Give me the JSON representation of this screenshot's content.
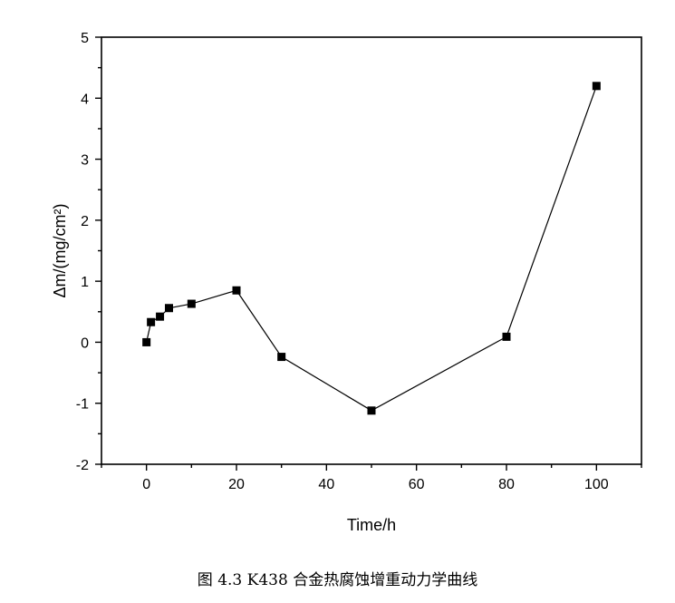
{
  "chart_data": {
    "type": "line",
    "title": "",
    "xlabel": "Time/h",
    "ylabel": "Δm/(mg/cm²)",
    "xlim": [
      -10,
      110
    ],
    "ylim": [
      -2,
      5
    ],
    "x_ticks": [
      0,
      20,
      40,
      60,
      80,
      100
    ],
    "y_ticks": [
      -2,
      -1,
      0,
      1,
      2,
      3,
      4,
      5
    ],
    "grid": false,
    "series": [
      {
        "marker": "square",
        "x": [
          0,
          1,
          3,
          5,
          10,
          20,
          30,
          50,
          80,
          100
        ],
        "y": [
          0.0,
          0.33,
          0.42,
          0.56,
          0.63,
          0.85,
          -0.24,
          -1.12,
          0.09,
          4.2
        ]
      }
    ]
  },
  "caption": "图 4.3   K438 合金热腐蚀增重动力学曲线",
  "colors": {
    "line": "#000000",
    "marker": "#000000",
    "background": "#ffffff"
  }
}
